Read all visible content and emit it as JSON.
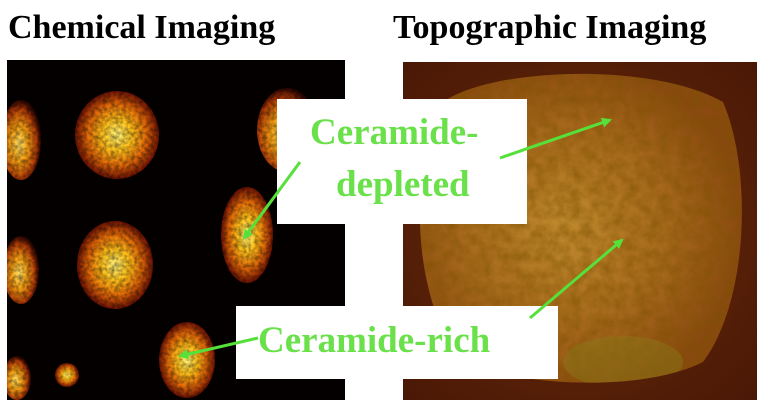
{
  "titles": {
    "left": "Chemical Imaging",
    "right": "Topographic Imaging"
  },
  "labels": {
    "depleted_line1": "Ceramide-",
    "depleted_line2": "depleted",
    "rich": "Ceramide-rich"
  },
  "colors": {
    "label_text": "#6ae04a",
    "arrow": "#56e03a",
    "chem_background": "#050000",
    "topo_background": "#5a2208"
  }
}
